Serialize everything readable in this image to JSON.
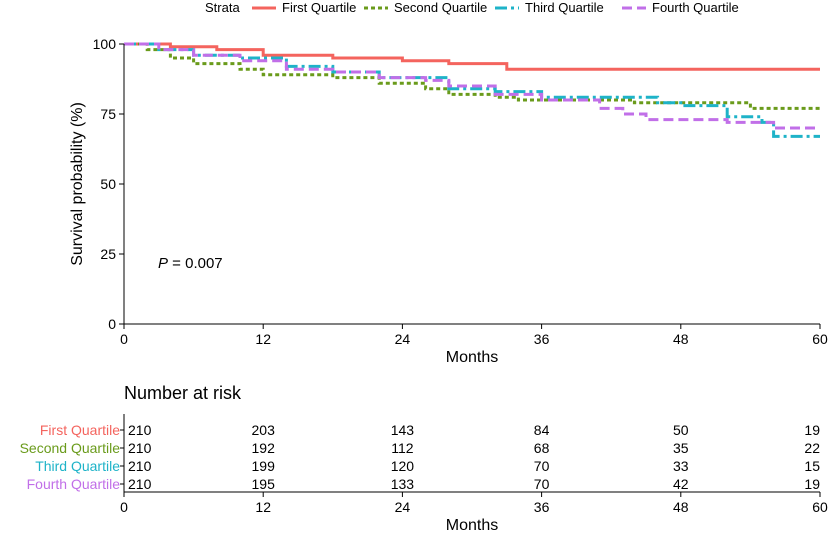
{
  "chart_data": {
    "type": "line",
    "subtype": "kaplan-meier",
    "legend": {
      "title": "Strata",
      "position": "top",
      "entries": [
        "First Quartile",
        "Second Quartile",
        "Third Quartile",
        "Fourth Quartile"
      ]
    },
    "xlabel": "Months",
    "ylabel": "Survival probability (%)",
    "xlim": [
      0,
      60
    ],
    "ylim": [
      0,
      100
    ],
    "xticks": [
      0,
      12,
      24,
      36,
      48,
      60
    ],
    "yticks": [
      0,
      25,
      50,
      75,
      100
    ],
    "annotation": {
      "p_label": "P",
      "p_text": " = 0.007"
    },
    "series": [
      {
        "name": "First Quartile",
        "color": "#f4645e",
        "dash": "solid",
        "points": [
          [
            0,
            100
          ],
          [
            4,
            99
          ],
          [
            8,
            98
          ],
          [
            12,
            96
          ],
          [
            18,
            95
          ],
          [
            24,
            94
          ],
          [
            28,
            93
          ],
          [
            33,
            91
          ],
          [
            60,
            91
          ]
        ]
      },
      {
        "name": "Second Quartile",
        "color": "#6a9b1b",
        "dash": "dotted",
        "points": [
          [
            0,
            100
          ],
          [
            2,
            98
          ],
          [
            4,
            95
          ],
          [
            6,
            93
          ],
          [
            10,
            91
          ],
          [
            12,
            89
          ],
          [
            18,
            88
          ],
          [
            22,
            86
          ],
          [
            26,
            84
          ],
          [
            28,
            82
          ],
          [
            32,
            81
          ],
          [
            34,
            80
          ],
          [
            44,
            79
          ],
          [
            54,
            77
          ],
          [
            60,
            77
          ]
        ]
      },
      {
        "name": "Third Quartile",
        "color": "#1eb3c8",
        "dash": "dashdot",
        "points": [
          [
            0,
            100
          ],
          [
            3,
            98
          ],
          [
            6,
            96
          ],
          [
            10,
            95
          ],
          [
            14,
            92
          ],
          [
            18,
            90
          ],
          [
            22,
            88
          ],
          [
            28,
            84
          ],
          [
            32,
            83
          ],
          [
            36,
            81
          ],
          [
            46,
            79
          ],
          [
            48,
            78
          ],
          [
            52,
            74
          ],
          [
            55,
            72
          ],
          [
            56,
            67
          ],
          [
            60,
            67
          ]
        ]
      },
      {
        "name": "Fourth Quartile",
        "color": "#c16fe8",
        "dash": "dashed",
        "points": [
          [
            0,
            100
          ],
          [
            3,
            98
          ],
          [
            6,
            96
          ],
          [
            10,
            94
          ],
          [
            14,
            91
          ],
          [
            18,
            90
          ],
          [
            22,
            88
          ],
          [
            26,
            87
          ],
          [
            28,
            85
          ],
          [
            32,
            82
          ],
          [
            36,
            80
          ],
          [
            41,
            77
          ],
          [
            43,
            75
          ],
          [
            45,
            73
          ],
          [
            52,
            72
          ],
          [
            56,
            70
          ],
          [
            60,
            70
          ]
        ]
      }
    ],
    "risk_table": {
      "title": "Number at risk",
      "xlabel": "Months",
      "times": [
        0,
        12,
        24,
        36,
        48,
        60
      ],
      "rows": [
        {
          "label": "First  Quartile",
          "color": "#f4645e",
          "values": [
            "210",
            "203",
            "143",
            "84",
            "50",
            "19"
          ]
        },
        {
          "label": "Second  Quartile",
          "color": "#6a9b1b",
          "values": [
            "210",
            "192",
            "112",
            "68",
            "35",
            "22"
          ]
        },
        {
          "label": "Third Quartile",
          "color": "#1eb3c8",
          "values": [
            "210",
            "199",
            "120",
            "70",
            "33",
            "15"
          ]
        },
        {
          "label": "Fourth Quartile",
          "color": "#c16fe8",
          "values": [
            "210",
            "195",
            "133",
            "70",
            "42",
            "19"
          ]
        }
      ]
    }
  }
}
